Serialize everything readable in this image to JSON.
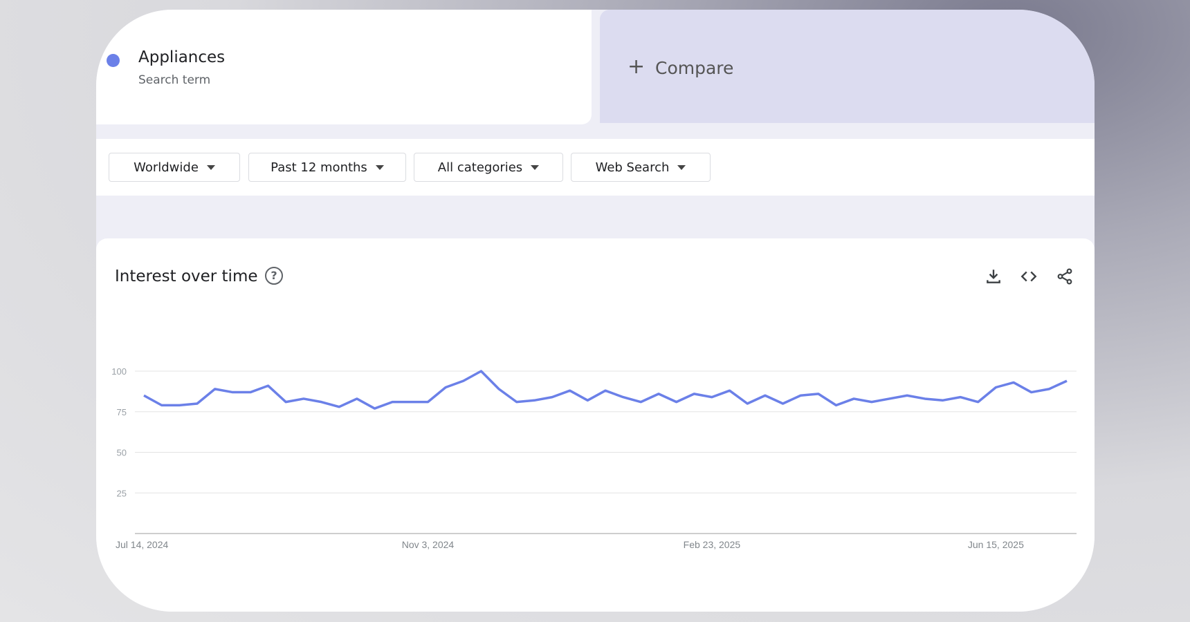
{
  "search_term": {
    "name": "Appliances",
    "type": "Search term",
    "color": "#6b80e8"
  },
  "compare": {
    "label": "Compare",
    "icon": "plus-icon"
  },
  "filters": [
    {
      "label": "Worldwide"
    },
    {
      "label": "Past 12 months"
    },
    {
      "label": "All categories"
    },
    {
      "label": "Web Search"
    }
  ],
  "chart_header": {
    "title": "Interest over time",
    "icons": [
      "help-icon",
      "download-icon",
      "embed-code-icon",
      "share-icon"
    ]
  },
  "chart_data": {
    "type": "line",
    "title": "Interest over time",
    "ylim": [
      0,
      100
    ],
    "yticks": [
      "25",
      "50",
      "75",
      "100"
    ],
    "xtick_labels": [
      "Jul 14, 2024",
      "Nov 3, 2024",
      "Feb 23, 2025",
      "Jun 15, 2025"
    ],
    "xtick_index": [
      0,
      16,
      32,
      48
    ],
    "grid": true,
    "series": [
      {
        "color": "#6b80e8",
        "values": [
          85,
          79,
          79,
          80,
          89,
          87,
          87,
          91,
          81,
          83,
          81,
          78,
          83,
          77,
          81,
          81,
          81,
          90,
          94,
          100,
          89,
          81,
          82,
          84,
          88,
          82,
          88,
          84,
          81,
          86,
          81,
          86,
          84,
          88,
          80,
          85,
          80,
          85,
          86,
          79,
          83,
          81,
          83,
          85,
          83,
          82,
          84,
          81,
          90,
          93,
          87,
          89,
          94
        ]
      }
    ]
  }
}
